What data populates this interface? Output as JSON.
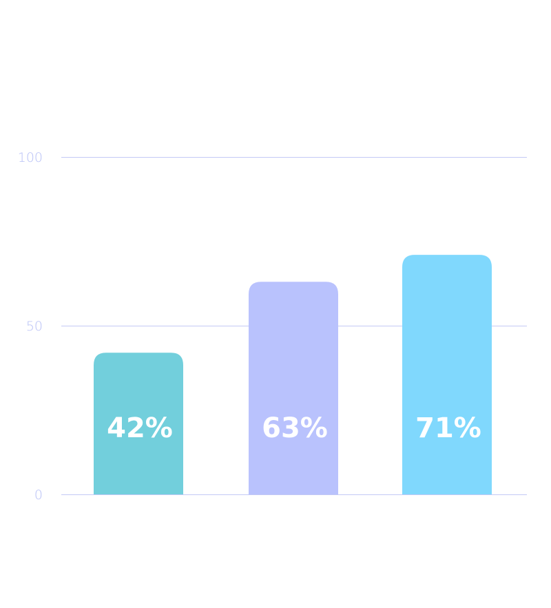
{
  "chart_data": {
    "type": "bar",
    "title": "",
    "xlabel": "",
    "ylabel": "",
    "ylim": [
      0,
      100
    ],
    "grid": true,
    "y_ticks": [
      {
        "value": 0,
        "label": "0"
      },
      {
        "value": 50,
        "label": "50"
      },
      {
        "value": 100,
        "label": "100"
      }
    ],
    "values": [
      42,
      63,
      71
    ],
    "data_labels": [
      "42%",
      "63%",
      "71%"
    ],
    "colors": [
      "#72cfdc",
      "#b9c2fd",
      "#80d8fd"
    ]
  },
  "style": {
    "gridline_color": "#c3c9f5",
    "tick_label_color": "#b7c0f6",
    "data_label_color": "#ffffff"
  }
}
